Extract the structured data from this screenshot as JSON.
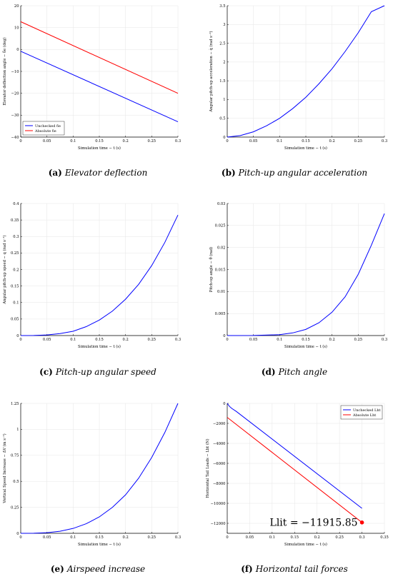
{
  "chart_data": [
    {
      "id": "a",
      "type": "line",
      "caption_label": "(a)",
      "caption_text": "Elevator deflection",
      "xlabel": "Simulation time − t (s)",
      "ylabel": "Elevator deflection angle − δe (deg)",
      "xlim": [
        0,
        0.3
      ],
      "ylim": [
        -40,
        20
      ],
      "xticks": [
        0,
        0.05,
        0.1,
        0.15,
        0.2,
        0.25,
        0.3
      ],
      "xtick_labels": [
        "0",
        "0.05",
        "0.1",
        "0.15",
        "0.2",
        "0.25",
        "0.3"
      ],
      "yticks": [
        -40,
        -30,
        -20,
        -10,
        0,
        10,
        20
      ],
      "ytick_labels": [
        "−40",
        "−30",
        "−20",
        "−10",
        "0",
        "10",
        "20"
      ],
      "grid": true,
      "legend": "bottom-left",
      "series": [
        {
          "name": "Unchecked δe",
          "color": "#0000ff",
          "x": [
            0,
            0.3
          ],
          "y": [
            -0.8,
            -33
          ]
        },
        {
          "name": "Absolute δe",
          "color": "#ff0000",
          "x": [
            0,
            0.3
          ],
          "y": [
            12.7,
            -20
          ]
        }
      ]
    },
    {
      "id": "b",
      "type": "line",
      "caption_label": "(b)",
      "caption_text": "Pitch-up angular acceleration",
      "xlabel": "Simulation time − t (s)",
      "ylabel": "Angular pitch-up acceleration − q̇ (rad s⁻²)",
      "xlim": [
        0,
        0.3
      ],
      "ylim": [
        0,
        3.5
      ],
      "xticks": [
        0,
        0.05,
        0.1,
        0.15,
        0.2,
        0.25,
        0.3
      ],
      "xtick_labels": [
        "0",
        "0.05",
        "0.1",
        "0.15",
        "0.2",
        "0.25",
        "0.3"
      ],
      "yticks": [
        0,
        0.5,
        1,
        1.5,
        2,
        2.5,
        3,
        3.5
      ],
      "ytick_labels": [
        "0",
        "0.5",
        "1",
        "1.5",
        "2",
        "2.5",
        "3",
        "3.5"
      ],
      "grid": true,
      "legend": "none",
      "series": [
        {
          "name": "",
          "color": "#0000ff",
          "x": [
            0,
            0.025,
            0.05,
            0.075,
            0.1,
            0.125,
            0.15,
            0.175,
            0.2,
            0.225,
            0.25,
            0.275,
            0.3
          ],
          "y": [
            0,
            0.04,
            0.14,
            0.3,
            0.5,
            0.76,
            1.06,
            1.42,
            1.82,
            2.28,
            2.78,
            3.34,
            3.5
          ]
        }
      ]
    },
    {
      "id": "c",
      "type": "line",
      "caption_label": "(c)",
      "caption_text": "Pitch-up angular speed",
      "xlabel": "Simulation time − t (s)",
      "ylabel": "Angular pitch-up speed − q (rad s⁻¹)",
      "xlim": [
        0,
        0.3
      ],
      "ylim": [
        0,
        0.4
      ],
      "xticks": [
        0,
        0.05,
        0.1,
        0.15,
        0.2,
        0.25,
        0.3
      ],
      "xtick_labels": [
        "0",
        "0.05",
        "0.1",
        "0.15",
        "0.2",
        "0.25",
        "0.3"
      ],
      "yticks": [
        0,
        0.05,
        0.1,
        0.15,
        0.2,
        0.25,
        0.3,
        0.35,
        0.4
      ],
      "ytick_labels": [
        "0",
        "0.05",
        "0.1",
        "0.15",
        "0.2",
        "0.25",
        "0.3",
        "0.35",
        "0.4"
      ],
      "grid": true,
      "legend": "none",
      "series": [
        {
          "name": "",
          "color": "#0000ff",
          "x": [
            0,
            0.025,
            0.05,
            0.075,
            0.1,
            0.125,
            0.15,
            0.175,
            0.2,
            0.225,
            0.25,
            0.275,
            0.3
          ],
          "y": [
            0,
            0.0003,
            0.002,
            0.006,
            0.013,
            0.027,
            0.047,
            0.074,
            0.11,
            0.155,
            0.212,
            0.282,
            0.365
          ]
        }
      ]
    },
    {
      "id": "d",
      "type": "line",
      "caption_label": "(d)",
      "caption_text": "Pitch angle",
      "xlabel": "Simulation time − t (s)",
      "ylabel": "Pitch-up angle − θ (rad)",
      "xlim": [
        0,
        0.3
      ],
      "ylim": [
        0,
        0.03
      ],
      "xticks": [
        0,
        0.05,
        0.1,
        0.15,
        0.2,
        0.25,
        0.3
      ],
      "xtick_labels": [
        "0",
        "0.05",
        "0.1",
        "0.15",
        "0.2",
        "0.25",
        "0.3"
      ],
      "yticks": [
        0,
        0.005,
        0.01,
        0.015,
        0.02,
        0.025,
        0.03
      ],
      "ytick_labels": [
        "0",
        "0.005",
        "0.01",
        "0.015",
        "0.02",
        "0.025",
        "0.03"
      ],
      "grid": true,
      "legend": "none",
      "series": [
        {
          "name": "",
          "color": "#0000ff",
          "x": [
            0,
            0.05,
            0.1,
            0.125,
            0.15,
            0.175,
            0.2,
            0.225,
            0.25,
            0.275,
            0.3
          ],
          "y": [
            0,
            2e-05,
            0.0002,
            0.0006,
            0.0014,
            0.0029,
            0.0053,
            0.0088,
            0.0139,
            0.0205,
            0.0277
          ]
        }
      ]
    },
    {
      "id": "e",
      "type": "line",
      "caption_label": "(e)",
      "caption_text": "Airspeed increase",
      "xlabel": "Simulation time − t (s)",
      "ylabel": "Vertical Speed Increase − ΔV (m s⁻¹)",
      "xlim": [
        0,
        0.3
      ],
      "ylim": [
        0,
        1.25
      ],
      "xticks": [
        0,
        0.05,
        0.1,
        0.15,
        0.2,
        0.25,
        0.3
      ],
      "xtick_labels": [
        "0",
        "0.05",
        "0.1",
        "0.15",
        "0.2",
        "0.25",
        "0.3"
      ],
      "yticks": [
        0,
        0.25,
        0.5,
        0.75,
        1,
        1.25
      ],
      "ytick_labels": [
        "0",
        "0.25",
        "0.5",
        "0.75",
        "1",
        "1.25"
      ],
      "grid": true,
      "legend": "none",
      "series": [
        {
          "name": "",
          "color": "#0000ff",
          "x": [
            0,
            0.025,
            0.05,
            0.075,
            0.1,
            0.125,
            0.15,
            0.175,
            0.2,
            0.225,
            0.25,
            0.275,
            0.3
          ],
          "y": [
            0,
            0.001,
            0.006,
            0.02,
            0.047,
            0.092,
            0.158,
            0.25,
            0.37,
            0.53,
            0.73,
            0.97,
            1.25
          ]
        }
      ]
    },
    {
      "id": "f",
      "type": "line",
      "caption_label": "(f)",
      "caption_text": "Horizontal tail forces",
      "xlabel": "Simulation time − t (s)",
      "ylabel": "Horizontal Tail Loads − Lht (N)",
      "xlim": [
        0,
        0.35
      ],
      "ylim": [
        -13000,
        0
      ],
      "xticks": [
        0,
        0.05,
        0.1,
        0.15,
        0.2,
        0.25,
        0.3,
        0.35
      ],
      "xtick_labels": [
        "0",
        "0.05",
        "0.1",
        "0.15",
        "0.2",
        "0.25",
        "0.3",
        "0.35"
      ],
      "yticks": [
        -12000,
        -10000,
        -8000,
        -6000,
        -4000,
        -2000,
        0
      ],
      "ytick_labels": [
        "−12000",
        "−10000",
        "−8000",
        "−6000",
        "−4000",
        "−2000",
        "0"
      ],
      "grid": true,
      "legend": "top-right",
      "series": [
        {
          "name": "Unchecked Lht",
          "color": "#0000ff",
          "x": [
            0,
            0.005,
            0.01,
            0.02,
            0.3
          ],
          "y": [
            0,
            -300,
            -500,
            -800,
            -10500
          ]
        },
        {
          "name": "Absolute Lht",
          "color": "#ff0000",
          "x": [
            0,
            0.3
          ],
          "y": [
            -1400,
            -11915.85
          ]
        }
      ],
      "annotation": {
        "text": "Llit = −11915.85",
        "x": 0.3,
        "y": -11915.85,
        "marker_color": "#ff0000"
      }
    }
  ]
}
